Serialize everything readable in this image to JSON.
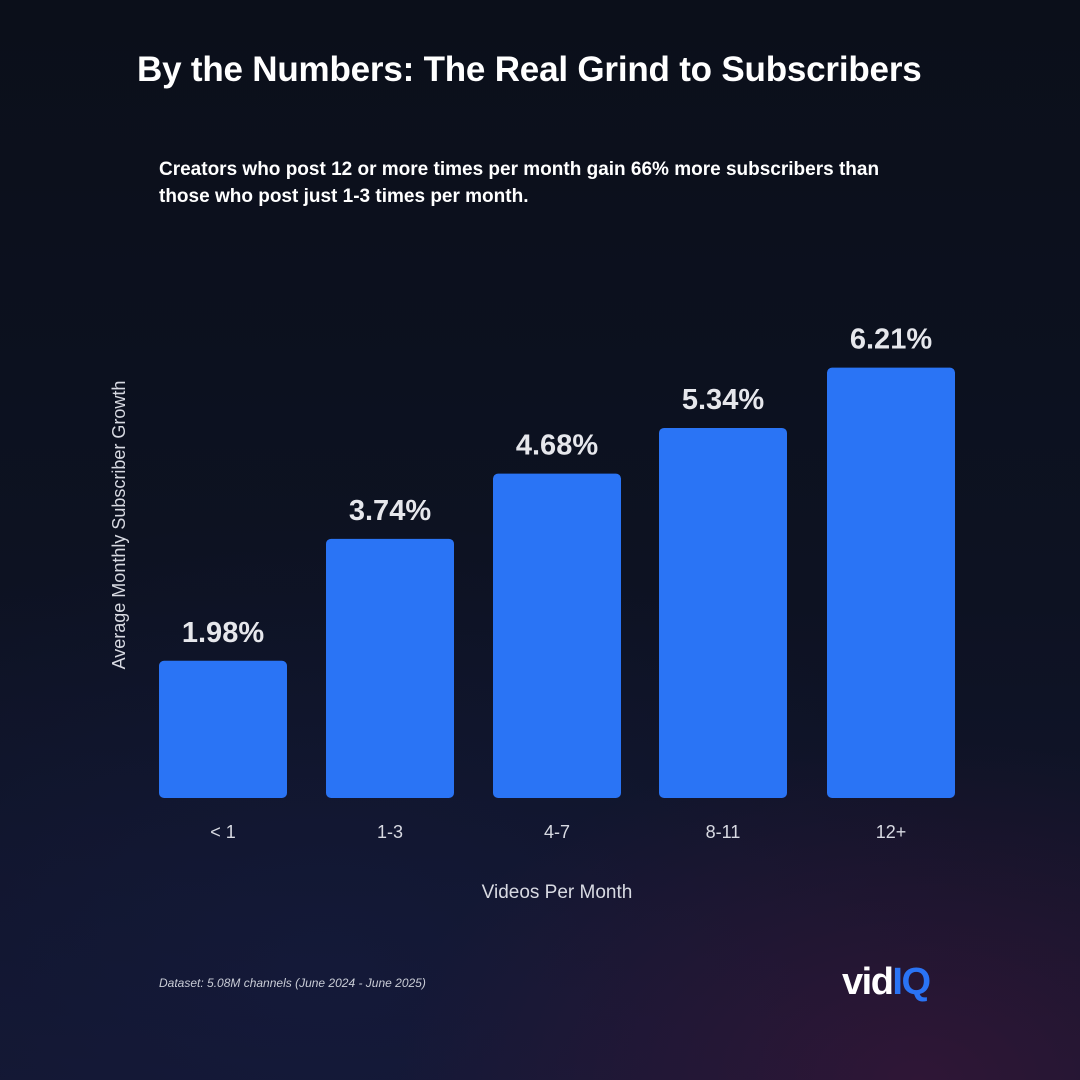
{
  "title": "By the Numbers: The Real Grind to Subscribers",
  "subtitle": "Creators who post 12 or more times per month gain 66% more subscribers than those who post just 1-3 times per month.",
  "footnote": "Dataset: 5.08M channels (June 2024 - June 2025)",
  "logo": {
    "text_a": "vid",
    "text_b": "IQ",
    "color_a": "#ffffff",
    "color_b": "#2a74f5"
  },
  "colors": {
    "bar": "#2a74f5",
    "value_label": "#e6e7ec",
    "tick_label": "#d8dae2",
    "axis_label": "#d8dae2"
  },
  "chart_data": {
    "type": "bar",
    "title": "",
    "xlabel": "Videos Per Month",
    "ylabel": "Average Monthly Subscriber Growth",
    "categories": [
      "< 1",
      "1-3",
      "4-7",
      "8-11",
      "12+"
    ],
    "values": [
      1.98,
      3.74,
      4.68,
      5.34,
      6.21
    ],
    "value_labels": [
      "1.98%",
      "3.74%",
      "4.68%",
      "5.34%",
      "6.21%"
    ],
    "ylim": [
      0,
      7
    ],
    "grid": false,
    "legend": "none"
  }
}
